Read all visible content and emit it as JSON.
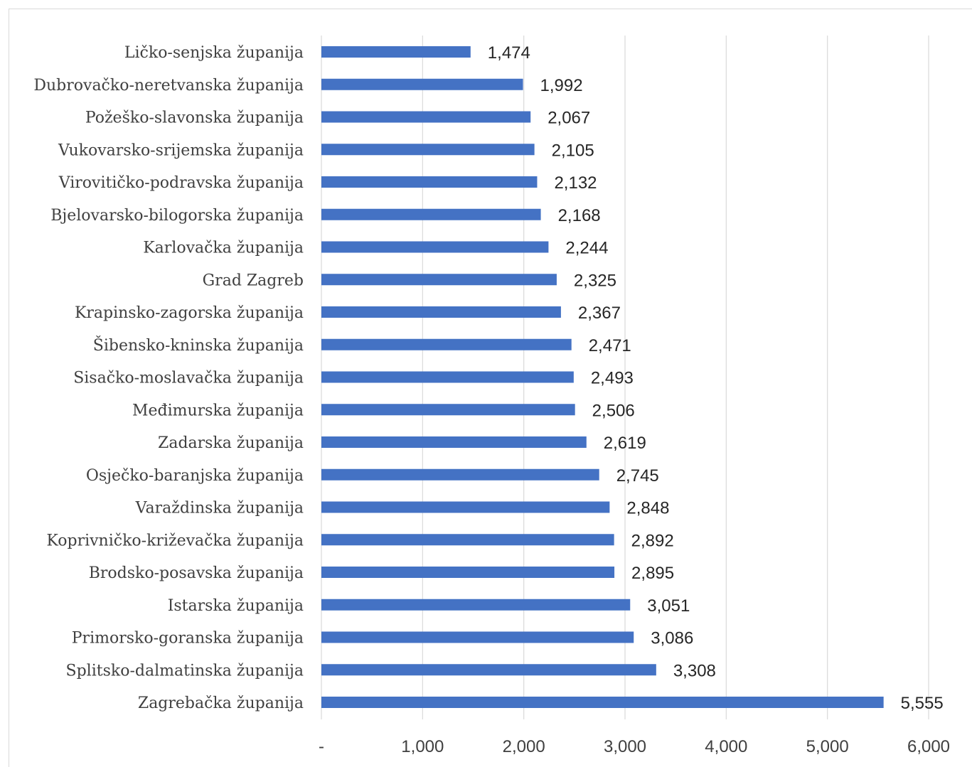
{
  "chart_data": {
    "type": "bar",
    "orientation": "horizontal",
    "categories": [
      "Ličko-senjska županija",
      "Dubrovačko-neretvanska županija",
      "Požeško-slavonska županija",
      "Vukovarsko-srijemska županija",
      "Virovitičko-podravska županija",
      "Bjelovarsko-bilogorska županija",
      "Karlovačka županija",
      "Grad Zagreb",
      "Krapinsko-zagorska županija",
      "Šibensko-kninska županija",
      "Sisačko-moslavačka županija",
      "Međimurska županija",
      "Zadarska županija",
      "Osječko-baranjska županija",
      "Varaždinska županija",
      "Koprivničko-križevačka županija",
      "Brodsko-posavska županija",
      "Istarska županija",
      "Primorsko-goranska županija",
      "Splitsko-dalmatinska županija",
      "Zagrebačka županija"
    ],
    "values": [
      1474,
      1992,
      2067,
      2105,
      2132,
      2168,
      2244,
      2325,
      2367,
      2471,
      2493,
      2506,
      2619,
      2745,
      2848,
      2892,
      2895,
      3051,
      3086,
      3308,
      5555
    ],
    "value_labels": [
      "1,474",
      "1,992",
      "2,067",
      "2,105",
      "2,132",
      "2,168",
      "2,244",
      "2,325",
      "2,367",
      "2,471",
      "2,493",
      "2,506",
      "2,619",
      "2,745",
      "2,848",
      "2,892",
      "2,895",
      "3,051",
      "3,086",
      "3,308",
      "5,555"
    ],
    "xlim": [
      0,
      6000
    ],
    "xticks": [
      0,
      1000,
      2000,
      3000,
      4000,
      5000,
      6000
    ],
    "xtick_labels": [
      "-",
      "1,000",
      "2,000",
      "3,000",
      "4,000",
      "5,000",
      "6,000"
    ],
    "grid": "vertical",
    "legend": "none",
    "title": "",
    "xlabel": "",
    "ylabel": "",
    "colors": {
      "bar": "#4472c4",
      "grid": "#d9d9d9"
    }
  }
}
